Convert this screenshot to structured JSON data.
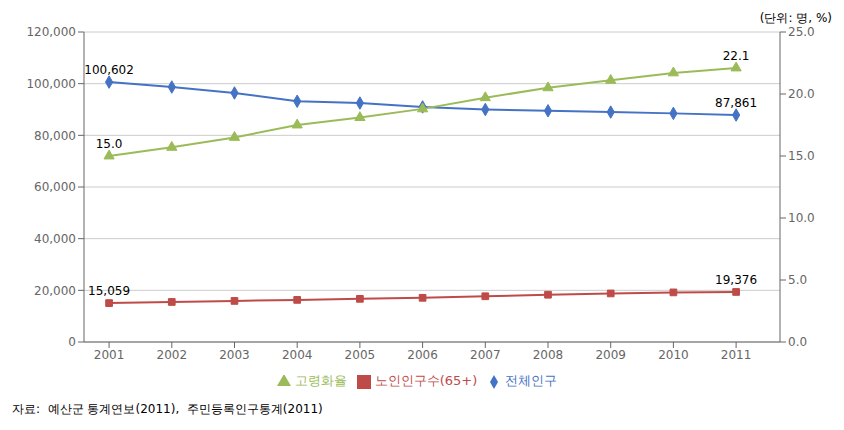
{
  "chart_data": {
    "type": "line",
    "subtitle": "(단위: 명, %)",
    "source": "자료:  예산군 통계연보(2011),  주민등록인구통계(2011)",
    "x": [
      2001,
      2002,
      2003,
      2004,
      2005,
      2006,
      2007,
      2008,
      2009,
      2010,
      2011
    ],
    "xlim": [
      2000.6,
      2011.7
    ],
    "xticks": [
      2001,
      2002,
      2003,
      2004,
      2005,
      2006,
      2007,
      2008,
      2009,
      2010,
      2011
    ],
    "ylim": [
      0,
      120000
    ],
    "yticks": [
      0,
      {
        "value": 20000,
        "label": "20,000"
      },
      {
        "value": 40000,
        "label": "40,000"
      },
      {
        "value": 60000,
        "label": "60,000"
      },
      {
        "value": 80000,
        "label": "80,000"
      },
      {
        "value": 100000,
        "label": "100,000"
      },
      {
        "value": 120000,
        "label": "120,000"
      }
    ],
    "y2lim": [
      0,
      25.0
    ],
    "y2ticks": [
      {
        "value": 0,
        "label": "0.0"
      },
      {
        "value": 5,
        "label": "5.0"
      },
      {
        "value": 10,
        "label": "10.0"
      },
      {
        "value": 15,
        "label": "15.0"
      },
      {
        "value": 20,
        "label": "20.0"
      },
      {
        "value": 25,
        "label": "25.0"
      }
    ],
    "grid": "y",
    "legend": "bottom",
    "series": [
      {
        "name": "전체인구",
        "color": "#4472C4",
        "marker": "diamond",
        "values": [
          100602,
          98700,
          96400,
          93200,
          92500,
          91000,
          90000,
          89500,
          89000,
          88500,
          87861
        ]
      },
      {
        "name": "노인인구수(65+)",
        "color": "#BE4B48",
        "marker": "square",
        "values": [
          15059,
          15500,
          15900,
          16300,
          16700,
          17100,
          17700,
          18300,
          18800,
          19200,
          19376
        ]
      },
      {
        "name": "고령화율",
        "color": "#9BBB59",
        "marker": "triangle",
        "axis": "y2",
        "values": [
          15.0,
          15.7,
          16.5,
          17.5,
          18.1,
          18.8,
          19.7,
          20.5,
          21.1,
          21.7,
          22.1
        ]
      }
    ],
    "annotations": [
      {
        "text": "100,602",
        "x": 2001,
        "y": 100602
      },
      {
        "text": "15,059",
        "x": 2001,
        "y": 15059
      },
      {
        "text": "15.0",
        "x": 2001,
        "y": 15.0,
        "axis": "y2"
      },
      {
        "text": "87,861",
        "x": 2011,
        "y": 87861
      },
      {
        "text": "19,376",
        "x": 2011,
        "y": 19376
      },
      {
        "text": "22.1",
        "x": 2011,
        "y": 22.1,
        "axis": "y2"
      }
    ]
  }
}
